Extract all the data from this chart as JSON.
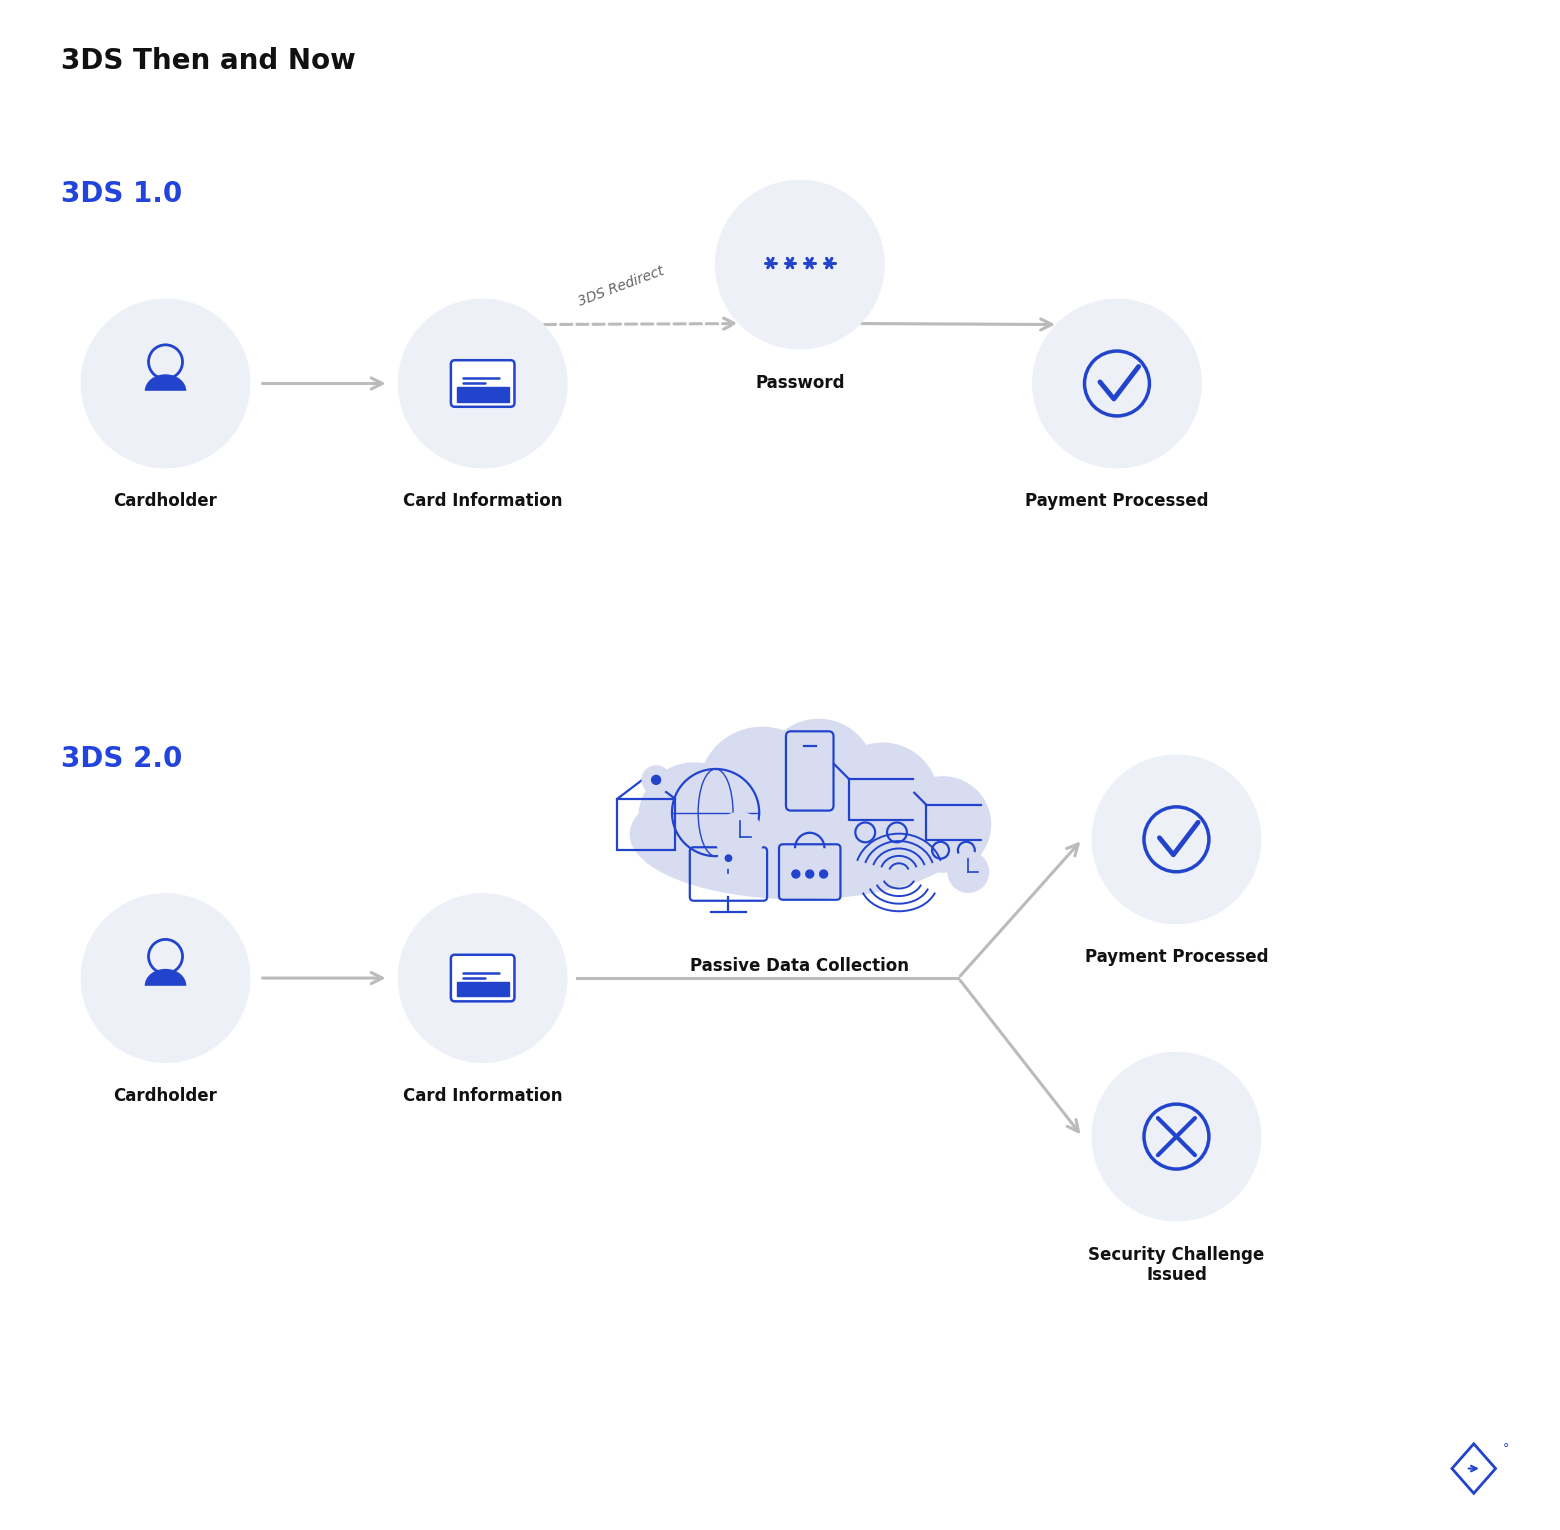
{
  "title": "3DS Then and Now",
  "title_fontsize": 20,
  "title_color": "#111111",
  "section1_label": "3DS 1.0",
  "section2_label": "3DS 2.0",
  "section_label_color": "#2244DD",
  "section_label_fontsize": 20,
  "bg_color": "#ffffff",
  "node_fill": "#eef0f8",
  "blue": "#2244CC",
  "arrow_color": "#bbbbbb",
  "cloud_fill": "#d8dcf0",
  "label_fontsize": 12,
  "label_color": "#111111"
}
